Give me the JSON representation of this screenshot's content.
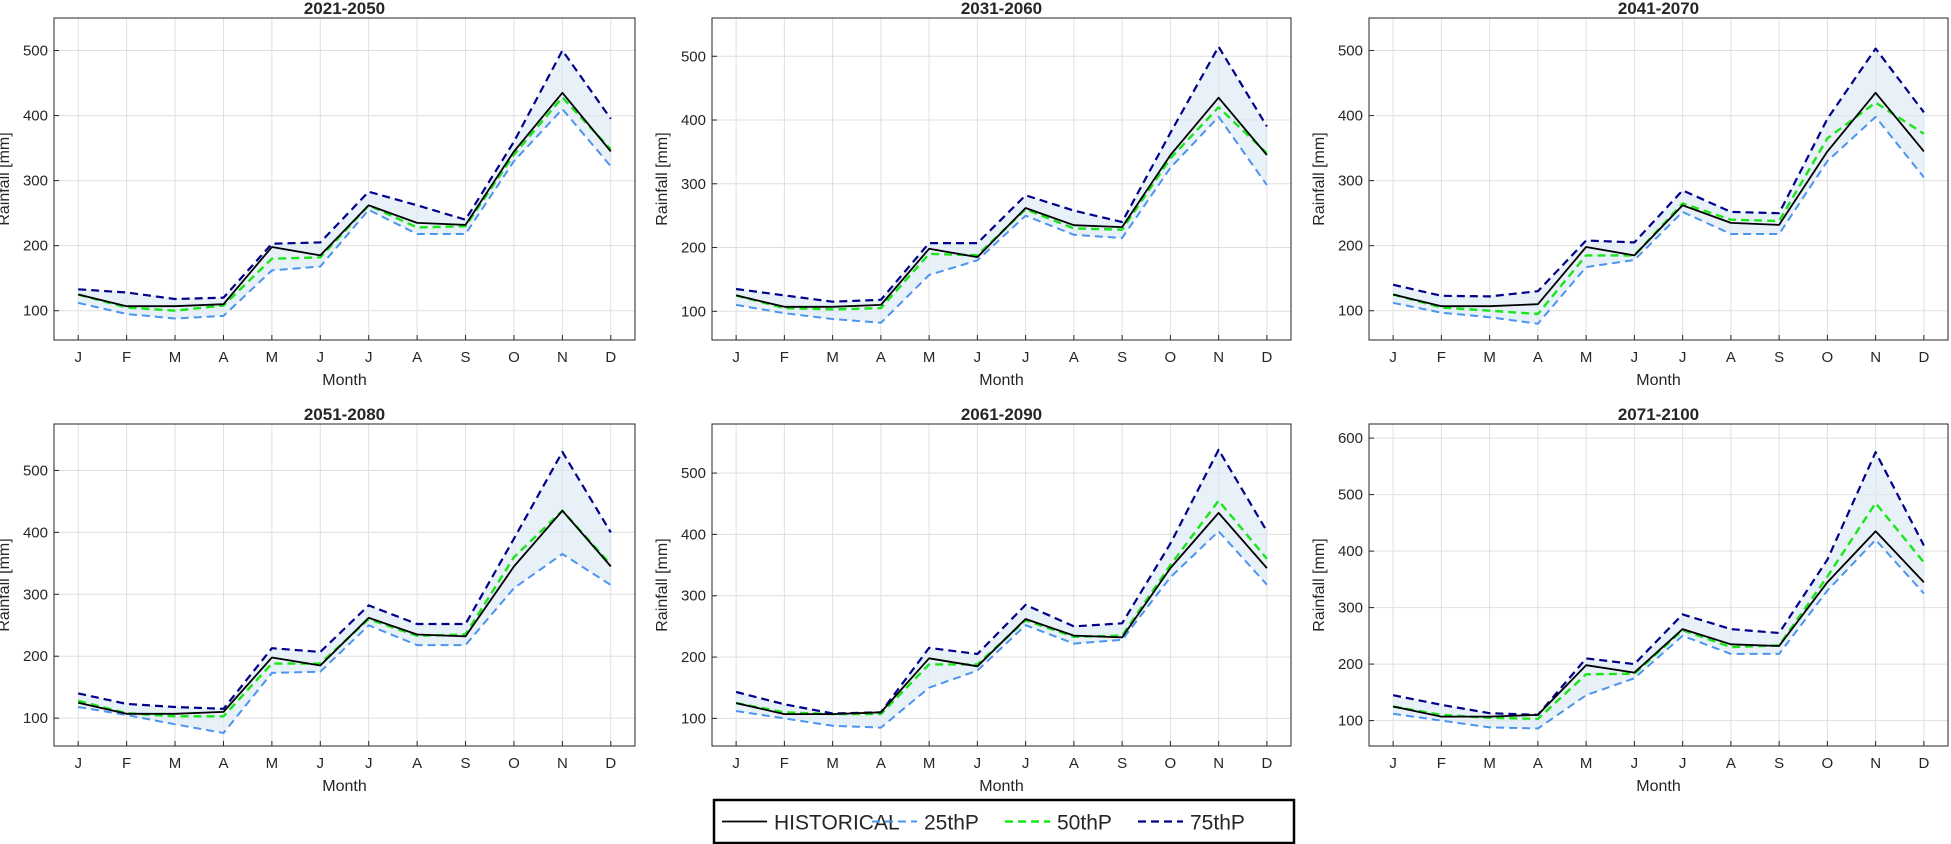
{
  "figure": {
    "x_categories": [
      "J",
      "F",
      "M",
      "A",
      "M",
      "J",
      "J",
      "A",
      "S",
      "O",
      "N",
      "D"
    ],
    "xlabel": "Month",
    "ylabel": "Rainfall [mm]",
    "colors": {
      "historical": "#000000",
      "p25": "#4d94ee",
      "p50": "#19e619",
      "p75": "#00008b",
      "band": "#dbe8f5",
      "grid": "#dfdfdf",
      "axis": "#262626"
    },
    "legend": {
      "placement": "bottom-center",
      "entries": [
        {
          "key": "historical",
          "label": "HISTORICAL"
        },
        {
          "key": "p25",
          "label": "25thP"
        },
        {
          "key": "p50",
          "label": "50thP"
        },
        {
          "key": "p75",
          "label": "75thP"
        }
      ]
    }
  },
  "chart_data": [
    {
      "type": "line",
      "title": "2021-2050",
      "ylim": [
        55,
        550
      ],
      "yticks": [
        100,
        200,
        300,
        400,
        500
      ],
      "grid": true,
      "series": [
        {
          "key": "historical",
          "values": [
            125,
            107,
            107,
            110,
            198,
            185,
            262,
            235,
            232,
            345,
            435,
            345
          ]
        },
        {
          "key": "p25",
          "values": [
            112,
            95,
            88,
            92,
            162,
            168,
            255,
            218,
            218,
            330,
            410,
            322
          ]
        },
        {
          "key": "p50",
          "values": [
            125,
            105,
            100,
            108,
            180,
            182,
            262,
            228,
            230,
            340,
            428,
            348
          ]
        },
        {
          "key": "p75",
          "values": [
            133,
            128,
            118,
            120,
            203,
            205,
            283,
            262,
            240,
            360,
            500,
            395
          ]
        }
      ]
    },
    {
      "type": "line",
      "title": "2031-2060",
      "ylim": [
        55,
        560
      ],
      "yticks": [
        100,
        200,
        300,
        400,
        500
      ],
      "grid": true,
      "series": [
        {
          "key": "historical",
          "values": [
            125,
            107,
            107,
            110,
            198,
            185,
            262,
            235,
            232,
            345,
            435,
            345
          ]
        },
        {
          "key": "p25",
          "values": [
            110,
            97,
            88,
            82,
            157,
            180,
            250,
            220,
            215,
            325,
            405,
            298
          ]
        },
        {
          "key": "p50",
          "values": [
            125,
            105,
            103,
            105,
            190,
            188,
            260,
            230,
            228,
            340,
            420,
            348
          ]
        },
        {
          "key": "p75",
          "values": [
            135,
            125,
            115,
            118,
            207,
            207,
            282,
            258,
            240,
            380,
            515,
            390
          ]
        }
      ]
    },
    {
      "type": "line",
      "title": "2041-2070",
      "ylim": [
        55,
        550
      ],
      "yticks": [
        100,
        200,
        300,
        400,
        500
      ],
      "grid": true,
      "series": [
        {
          "key": "historical",
          "values": [
            125,
            107,
            107,
            110,
            198,
            185,
            262,
            235,
            232,
            345,
            435,
            345
          ]
        },
        {
          "key": "p25",
          "values": [
            112,
            97,
            90,
            80,
            167,
            178,
            252,
            218,
            218,
            330,
            398,
            305
          ]
        },
        {
          "key": "p50",
          "values": [
            125,
            105,
            100,
            95,
            185,
            185,
            265,
            240,
            238,
            365,
            420,
            372
          ]
        },
        {
          "key": "p75",
          "values": [
            140,
            123,
            122,
            130,
            208,
            205,
            285,
            252,
            250,
            395,
            503,
            405
          ]
        }
      ]
    },
    {
      "type": "line",
      "title": "2051-2080",
      "ylim": [
        55,
        575
      ],
      "yticks": [
        100,
        200,
        300,
        400,
        500
      ],
      "grid": true,
      "series": [
        {
          "key": "historical",
          "values": [
            125,
            107,
            107,
            110,
            198,
            185,
            262,
            235,
            232,
            345,
            435,
            345
          ]
        },
        {
          "key": "p25",
          "values": [
            118,
            105,
            90,
            76,
            173,
            175,
            250,
            218,
            218,
            310,
            365,
            315
          ]
        },
        {
          "key": "p50",
          "values": [
            128,
            108,
            103,
            103,
            188,
            188,
            260,
            233,
            235,
            360,
            435,
            348
          ]
        },
        {
          "key": "p75",
          "values": [
            140,
            123,
            118,
            115,
            213,
            207,
            282,
            252,
            252,
            390,
            530,
            400
          ]
        }
      ]
    },
    {
      "type": "line",
      "title": "2061-2090",
      "ylim": [
        55,
        580
      ],
      "yticks": [
        100,
        200,
        300,
        400,
        500
      ],
      "grid": true,
      "series": [
        {
          "key": "historical",
          "values": [
            125,
            107,
            107,
            110,
            198,
            185,
            262,
            235,
            232,
            345,
            435,
            345
          ]
        },
        {
          "key": "p25",
          "values": [
            112,
            100,
            88,
            85,
            150,
            178,
            252,
            222,
            228,
            330,
            405,
            318
          ]
        },
        {
          "key": "p50",
          "values": [
            125,
            110,
            107,
            107,
            188,
            188,
            260,
            233,
            235,
            350,
            455,
            360
          ]
        },
        {
          "key": "p75",
          "values": [
            143,
            123,
            108,
            110,
            215,
            205,
            285,
            250,
            255,
            385,
            538,
            405
          ]
        }
      ]
    },
    {
      "type": "line",
      "title": "2071-2100",
      "ylim": [
        55,
        625
      ],
      "yticks": [
        100,
        200,
        300,
        400,
        500,
        600
      ],
      "grid": true,
      "series": [
        {
          "key": "historical",
          "values": [
            125,
            107,
            107,
            110,
            198,
            185,
            262,
            235,
            232,
            345,
            435,
            345
          ]
        },
        {
          "key": "p25",
          "values": [
            112,
            100,
            88,
            86,
            145,
            175,
            250,
            218,
            218,
            330,
            420,
            325
          ]
        },
        {
          "key": "p50",
          "values": [
            125,
            110,
            105,
            103,
            182,
            183,
            260,
            230,
            233,
            355,
            485,
            380
          ]
        },
        {
          "key": "p75",
          "values": [
            145,
            128,
            113,
            110,
            210,
            200,
            288,
            262,
            255,
            385,
            575,
            410
          ]
        }
      ]
    }
  ]
}
